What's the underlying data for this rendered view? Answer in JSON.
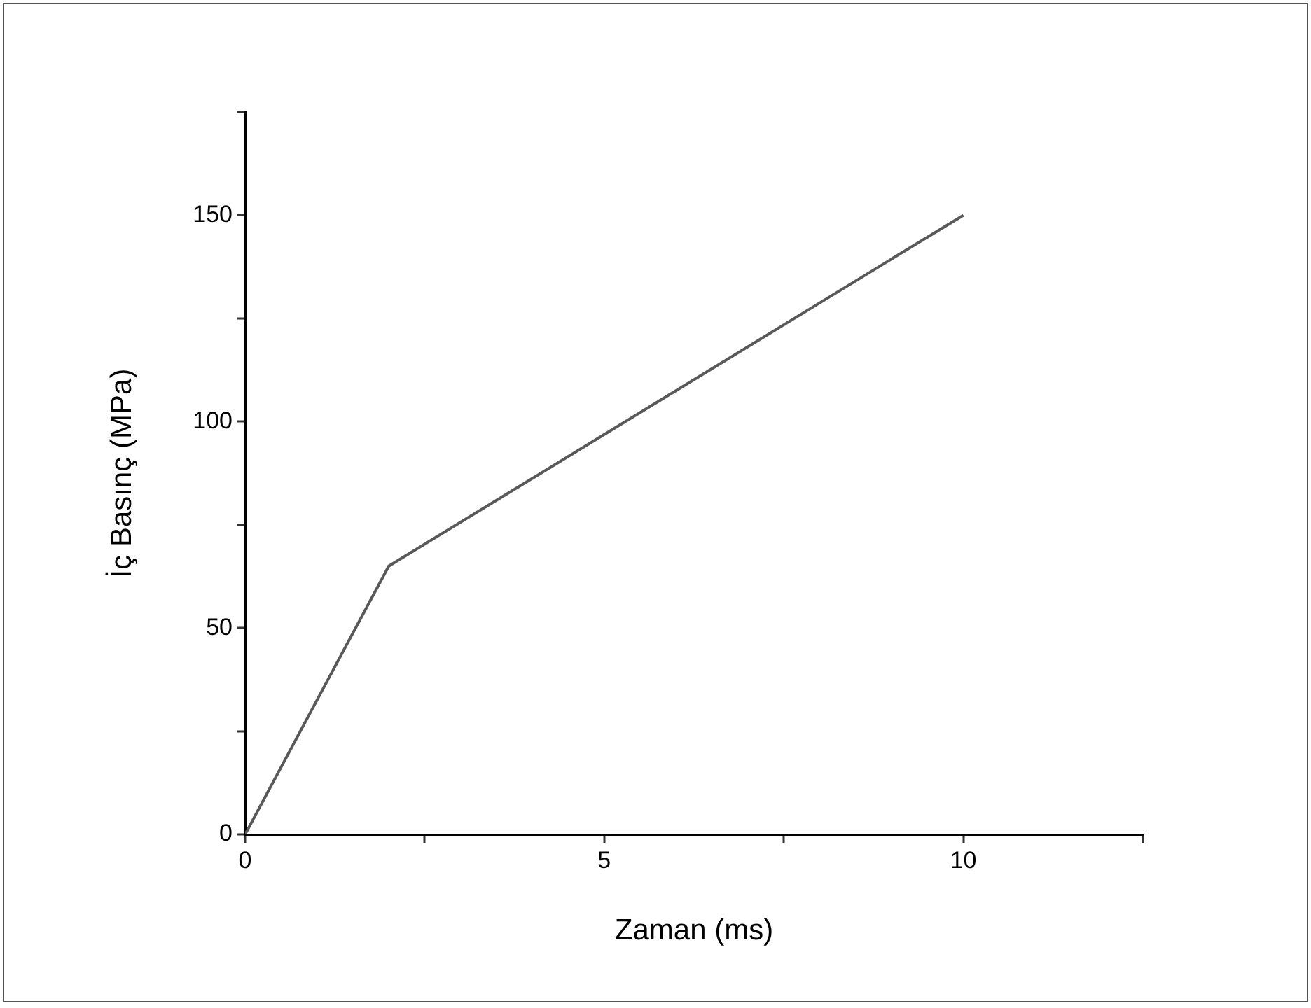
{
  "chart_data": {
    "type": "line",
    "xlabel": "Zaman (ms)",
    "ylabel": "İç Basınç (MPa)",
    "x": [
      0,
      2,
      10
    ],
    "series": [
      {
        "color": "#595959",
        "values": [
          0,
          65,
          150
        ]
      }
    ],
    "xlim": [
      0,
      12.5
    ],
    "xticks": [
      0,
      {
        "value": 2.5,
        "label": null
      },
      5,
      {
        "value": 7.5,
        "label": null
      },
      10,
      {
        "value": 12.5,
        "label": null
      }
    ],
    "ylim": [
      0,
      175
    ],
    "yticks": [
      0,
      {
        "value": 25,
        "label": null
      },
      50,
      {
        "value": 75,
        "label": null
      },
      100,
      {
        "value": 125,
        "label": null
      },
      150,
      {
        "value": 175,
        "label": null
      }
    ],
    "grid": false,
    "legend": false,
    "marker": "none",
    "line_style": "solid"
  }
}
